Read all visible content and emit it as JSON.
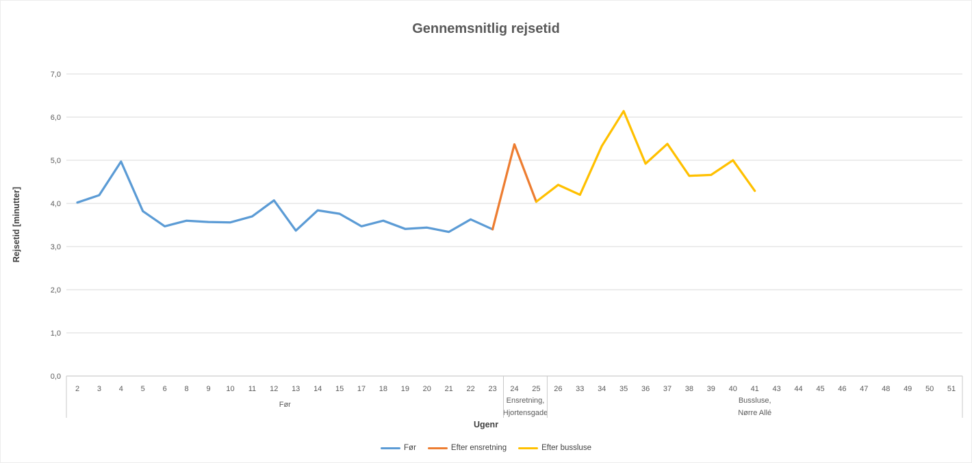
{
  "window": {
    "background": "#ffffff",
    "border_color": "#ececec"
  },
  "chart": {
    "title": "Gennemsnitlig rejsetid",
    "x_axis_title": "Ugenr",
    "y_axis_title": "Rejsetid [minutter]"
  },
  "chart_data": {
    "type": "line",
    "title": "Gennemsnitlig rejsetid",
    "xlabel": "Ugenr",
    "ylabel": "Rejsetid [minutter]",
    "ylim": [
      0,
      7
    ],
    "y_tick_step": 1.0,
    "y_tick_labels": [
      "0,0",
      "1,0",
      "2,0",
      "3,0",
      "4,0",
      "5,0",
      "6,0",
      "7,0"
    ],
    "grid": true,
    "legend_position": "bottom",
    "categories": [
      "2",
      "3",
      "4",
      "5",
      "6",
      "8",
      "9",
      "10",
      "11",
      "12",
      "13",
      "14",
      "15",
      "17",
      "18",
      "19",
      "20",
      "21",
      "22",
      "23",
      "24",
      "25",
      "26",
      "33",
      "34",
      "35",
      "36",
      "37",
      "38",
      "39",
      "40",
      "41",
      "43",
      "44",
      "45",
      "46",
      "47",
      "48",
      "49",
      "50",
      "51"
    ],
    "category_groups": [
      {
        "label_lines": [
          "Før"
        ],
        "start": "2",
        "end": "23"
      },
      {
        "label_lines": [
          "Ensretning,",
          "Hjortensgade"
        ],
        "start": "24",
        "end": "25"
      },
      {
        "label_lines": [
          "Bussluse,",
          "Nørre Allé"
        ],
        "start": "26",
        "end": "51"
      }
    ],
    "series": [
      {
        "name": "Før",
        "color": "#5B9BD5",
        "points": [
          [
            "2",
            4.02
          ],
          [
            "3",
            4.19
          ],
          [
            "4",
            4.97
          ],
          [
            "5",
            3.82
          ],
          [
            "6",
            3.47
          ],
          [
            "8",
            3.6
          ],
          [
            "9",
            3.57
          ],
          [
            "10",
            3.56
          ],
          [
            "11",
            3.7
          ],
          [
            "12",
            4.07
          ],
          [
            "13",
            3.37
          ],
          [
            "14",
            3.84
          ],
          [
            "15",
            3.76
          ],
          [
            "17",
            3.47
          ],
          [
            "18",
            3.6
          ],
          [
            "19",
            3.41
          ],
          [
            "20",
            3.44
          ],
          [
            "21",
            3.34
          ],
          [
            "22",
            3.63
          ],
          [
            "23",
            3.4
          ]
        ]
      },
      {
        "name": "Efter ensretning",
        "color": "#ED7D31",
        "points": [
          [
            "23",
            3.4
          ],
          [
            "24",
            5.37
          ],
          [
            "25",
            4.04
          ]
        ]
      },
      {
        "name": "Efter bussluse",
        "color": "#FFC000",
        "points": [
          [
            "25",
            4.04
          ],
          [
            "26",
            4.43
          ],
          [
            "33",
            4.2
          ],
          [
            "34",
            5.33
          ],
          [
            "35",
            6.14
          ],
          [
            "36",
            4.92
          ],
          [
            "37",
            5.38
          ],
          [
            "38",
            4.64
          ],
          [
            "39",
            4.66
          ],
          [
            "40",
            5.0
          ],
          [
            "41",
            4.29
          ]
        ]
      }
    ],
    "colors": {
      "gridline": "#D9D9D9",
      "axis_line": "#BFBFBF",
      "divider": "#C9C9C9",
      "tick_text": "#595959",
      "axis_title_text": "#3F3F3F",
      "chart_title_text": "#595959",
      "legend_text": "#404040"
    }
  }
}
